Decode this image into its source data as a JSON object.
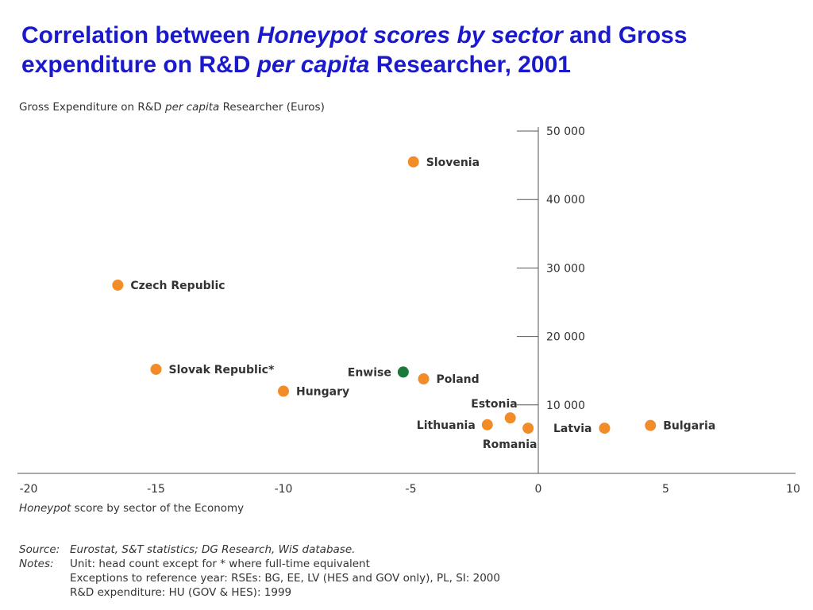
{
  "slide": {
    "title": {
      "part1": "Correlation between ",
      "part2": "Honeypot scores by sector",
      "part3": " and Gross expenditure on R&D ",
      "part4": "per capita",
      "part5": " Researcher, 2001"
    }
  },
  "chart_data": {
    "type": "scatter",
    "ylabel_parts": [
      "Gross Expenditure on R&D ",
      "per capita",
      " Researcher (Euros)"
    ],
    "xlabel_parts": [
      "Honeypot",
      " score by sector of the Economy"
    ],
    "xlim": [
      -20,
      10
    ],
    "ylim": [
      0,
      50000
    ],
    "x_ticks": [
      -20,
      -15,
      -10,
      -5,
      0,
      5,
      10
    ],
    "x_tick_labels": [
      "-20",
      "-15",
      "-10",
      "-5",
      "0",
      "5",
      "10"
    ],
    "y_ticks": [
      10000,
      20000,
      30000,
      40000,
      50000
    ],
    "y_tick_labels": [
      "10 000",
      "20 000",
      "30 000",
      "40 000",
      "50 000"
    ],
    "points": [
      {
        "label": "Slovenia",
        "x": -4.9,
        "y": 45500,
        "color": "#f28c28"
      },
      {
        "label": "Czech Republic",
        "x": -16.5,
        "y": 27500,
        "color": "#f28c28"
      },
      {
        "label": "Slovak Republic*",
        "x": -15.0,
        "y": 15200,
        "color": "#f28c28"
      },
      {
        "label": "Hungary",
        "x": -10.0,
        "y": 12000,
        "color": "#f28c28"
      },
      {
        "label": "Enwise",
        "x": -5.3,
        "y": 14800,
        "color": "#1a7a3a"
      },
      {
        "label": "Poland",
        "x": -4.5,
        "y": 13800,
        "color": "#f28c28"
      },
      {
        "label": "Estonia",
        "x": -1.1,
        "y": 8100,
        "color": "#f28c28"
      },
      {
        "label": "Lithuania",
        "x": -2.0,
        "y": 7100,
        "color": "#f28c28"
      },
      {
        "label": "Romania",
        "x": -0.4,
        "y": 6600,
        "color": "#f28c28"
      },
      {
        "label": "Latvia",
        "x": 2.6,
        "y": 6600,
        "color": "#f28c28"
      },
      {
        "label": "Bulgaria",
        "x": 4.4,
        "y": 7000,
        "color": "#f28c28"
      }
    ]
  },
  "notes": {
    "source_label": "Source:",
    "source_text": "Eurostat, S&T statistics; DG Research, WiS database.",
    "notes_label": "Notes:",
    "lines": [
      "Unit: head count except for * where full-time equivalent",
      "Exceptions to reference year: RSEs: BG, EE, LV (HES and GOV only), PL, SI: 2000",
      "R&D expenditure: HU (GOV & HES): 1999"
    ]
  }
}
